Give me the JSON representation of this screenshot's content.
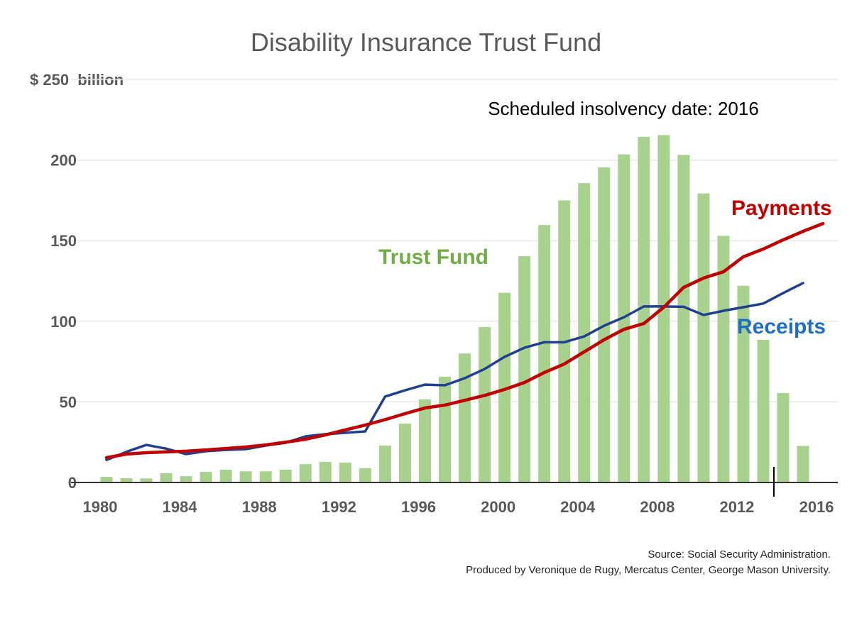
{
  "chart_data": {
    "type": "bar",
    "title": "Disability Insurance Trust Fund",
    "ylabel": "$ 250  billion",
    "annotation": "Scheduled insolvency date: 2016",
    "ylim": [
      0,
      250
    ],
    "yticks": [
      0,
      50,
      100,
      150,
      200
    ],
    "xlim": [
      1980,
      2016
    ],
    "xticks": [
      1980,
      1984,
      1988,
      1992,
      1996,
      2000,
      2004,
      2008,
      2012,
      2016
    ],
    "grid": true,
    "colors": {
      "trust_fund": "#a9d18e",
      "payments": "#c00000",
      "receipts": "#1f3f8f",
      "trust_fund_label": "#70ad47",
      "receipts_label": "#1f6fc0"
    },
    "series": [
      {
        "name": "Trust Fund",
        "kind": "bar",
        "x": [
          1980,
          1981,
          1982,
          1983,
          1984,
          1985,
          1986,
          1987,
          1988,
          1989,
          1990,
          1991,
          1992,
          1993,
          1994,
          1995,
          1996,
          1997,
          1998,
          1999,
          2000,
          2001,
          2002,
          2003,
          2004,
          2005,
          2006,
          2007,
          2008,
          2009,
          2010,
          2011,
          2012,
          2013,
          2014,
          2015
        ],
        "values": [
          3.5,
          2.6,
          2.5,
          5.7,
          3.9,
          6.6,
          7.9,
          6.9,
          6.9,
          7.9,
          11.4,
          12.8,
          12.3,
          8.8,
          22.9,
          36.5,
          51.5,
          65.6,
          80,
          96.4,
          117.7,
          140.4,
          159.7,
          175,
          185.7,
          195.4,
          203.5,
          214.4,
          215.5,
          203.2,
          179.3,
          153,
          122,
          88.5,
          55.5,
          22.7
        ]
      },
      {
        "name": "Payments",
        "kind": "line",
        "x": [
          1980,
          1981,
          1982,
          1983,
          1984,
          1985,
          1986,
          1987,
          1988,
          1989,
          1990,
          1991,
          1992,
          1993,
          1994,
          1995,
          1996,
          1997,
          1998,
          1999,
          2000,
          2001,
          2002,
          2003,
          2004,
          2005,
          2006,
          2007,
          2008,
          2009,
          2010,
          2011,
          2012,
          2013,
          2014,
          2015,
          2016
        ],
        "values": [
          15.4,
          17.6,
          18.5,
          19,
          19.4,
          20.2,
          21.1,
          22,
          23.3,
          25,
          26.8,
          29.5,
          32.6,
          35.6,
          39,
          42.7,
          46.2,
          48,
          51,
          54,
          57.7,
          62,
          68.2,
          73.5,
          81,
          88.5,
          95,
          98.6,
          108.7,
          121,
          126.8,
          130.7,
          140,
          144.8,
          150.5,
          155.8,
          160.6
        ]
      },
      {
        "name": "Receipts",
        "kind": "line",
        "x": [
          1980,
          1981,
          1982,
          1983,
          1984,
          1985,
          1986,
          1987,
          1988,
          1989,
          1990,
          1991,
          1992,
          1993,
          1994,
          1995,
          1996,
          1997,
          1998,
          1999,
          2000,
          2001,
          2002,
          2003,
          2004,
          2005,
          2006,
          2007,
          2008,
          2009,
          2010,
          2011,
          2012,
          2013,
          2014,
          2015
        ],
        "values": [
          14,
          19,
          23.3,
          21,
          17.6,
          19.4,
          20.2,
          20.7,
          22.9,
          24.6,
          28.6,
          30,
          30.8,
          31.7,
          53.3,
          57.2,
          60.7,
          60.3,
          64.7,
          70.4,
          77.9,
          83.6,
          87,
          87,
          90.6,
          97.2,
          102.5,
          109.2,
          109.2,
          109,
          103.9,
          106.5,
          108.7,
          111,
          117.5,
          123.7
        ]
      }
    ],
    "source": "Source: Social Security Administration.",
    "credit": "Produced by Veronique de Rugy, Mercatus Center, George Mason University."
  }
}
